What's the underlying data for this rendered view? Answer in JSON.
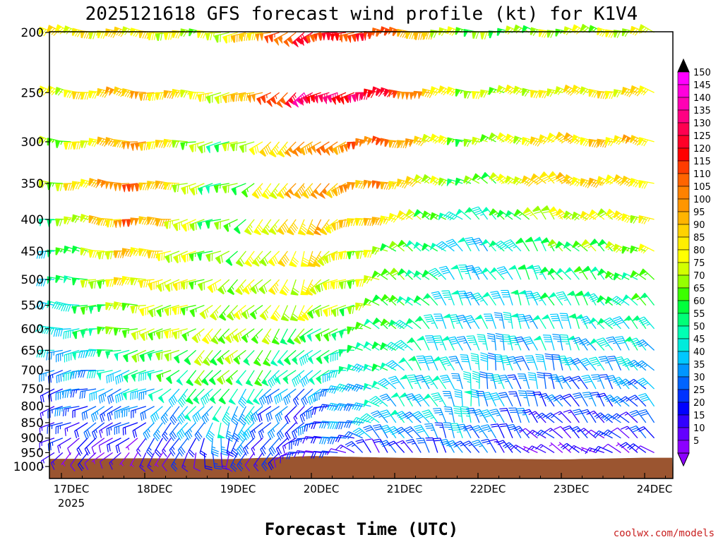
{
  "chart_data": {
    "type": "wind-barb-time-height",
    "title": "2025121618 GFS forecast wind profile (kt) for K1V4",
    "xlabel": "Forecast Time (UTC)",
    "ylabel": "Pressure (hPa)",
    "credit": "coolwx.com/models",
    "x_ticks": [
      "17DEC",
      "18DEC",
      "19DEC",
      "20DEC",
      "21DEC",
      "22DEC",
      "23DEC",
      "24DEC"
    ],
    "x_tick_sub": "2025",
    "y_ticks": [
      "200",
      "250",
      "300",
      "350",
      "400",
      "450",
      "500",
      "550",
      "600",
      "650",
      "700",
      "750",
      "800",
      "850",
      "900",
      "950",
      "1000"
    ],
    "levels_hpa": [
      200,
      250,
      300,
      350,
      400,
      450,
      500,
      550,
      600,
      650,
      700,
      750,
      800,
      850,
      900,
      950,
      1000
    ],
    "colorbar_labels": [
      "150",
      "145",
      "140",
      "135",
      "130",
      "125",
      "120",
      "115",
      "110",
      "105",
      "100",
      "95",
      "90",
      "85",
      "80",
      "75",
      "70",
      "65",
      "60",
      "55",
      "50",
      "45",
      "40",
      "35",
      "30",
      "25",
      "20",
      "15",
      "10",
      "5"
    ],
    "colorbar_colors": [
      "#ff00ff",
      "#ff00dc",
      "#ff00b4",
      "#ff0082",
      "#ff0050",
      "#ff0028",
      "#ff0000",
      "#ff3c00",
      "#ff6400",
      "#ff8200",
      "#ff9600",
      "#ffb400",
      "#ffd200",
      "#ffee00",
      "#ffff00",
      "#d2ff00",
      "#96ff00",
      "#3cff00",
      "#00ff3c",
      "#00ff78",
      "#00ffb4",
      "#00ebdc",
      "#00c8ff",
      "#0096ff",
      "#0064ff",
      "#0032ff",
      "#0000ff",
      "#3200ff",
      "#6400ff",
      "#8c00ff"
    ],
    "speed_profiles_kt": {
      "17DEC": [
        80,
        75,
        65,
        70,
        55,
        50,
        45,
        40,
        40,
        35,
        30,
        25,
        25,
        20,
        15,
        10,
        5
      ],
      "18DEC": [
        85,
        95,
        100,
        110,
        105,
        90,
        85,
        75,
        70,
        60,
        50,
        40,
        30,
        25,
        15,
        10,
        5
      ],
      "19DEC": [
        70,
        75,
        60,
        55,
        60,
        65,
        70,
        70,
        75,
        70,
        65,
        55,
        45,
        40,
        30,
        20,
        10
      ],
      "20DEC": [
        120,
        130,
        100,
        95,
        90,
        85,
        80,
        75,
        60,
        50,
        45,
        30,
        20,
        25,
        20,
        15,
        10
      ],
      "21DEC": [
        115,
        125,
        110,
        100,
        90,
        70,
        70,
        65,
        60,
        55,
        50,
        45,
        45,
        40,
        35,
        20,
        10
      ],
      "22DEC": [
        65,
        70,
        65,
        60,
        45,
        40,
        40,
        40,
        40,
        40,
        40,
        40,
        40,
        40,
        35,
        30,
        15
      ],
      "23DEC": [
        70,
        80,
        85,
        90,
        75,
        60,
        55,
        50,
        45,
        40,
        35,
        30,
        25,
        20,
        15,
        10,
        10
      ],
      "24DEC": [
        75,
        85,
        90,
        85,
        80,
        70,
        60,
        55,
        50,
        45,
        40,
        35,
        30,
        25,
        20,
        15,
        10
      ]
    },
    "direction_profiles_deg": {
      "17DEC": [
        290,
        285,
        280,
        280,
        280,
        280,
        275,
        275,
        270,
        265,
        260,
        255,
        250,
        245,
        240,
        230,
        220
      ],
      "18DEC": [
        280,
        280,
        275,
        275,
        275,
        275,
        270,
        270,
        265,
        260,
        255,
        250,
        245,
        240,
        230,
        220,
        210
      ],
      "19DEC": [
        270,
        265,
        260,
        255,
        250,
        245,
        240,
        235,
        230,
        225,
        220,
        215,
        210,
        200,
        190,
        180,
        170
      ],
      "20DEC": [
        240,
        230,
        220,
        210,
        200,
        200,
        205,
        210,
        215,
        220,
        225,
        230,
        235,
        240,
        250,
        260,
        270
      ],
      "21DEC": [
        280,
        280,
        285,
        285,
        290,
        295,
        300,
        300,
        305,
        305,
        305,
        310,
        310,
        310,
        320,
        330,
        340
      ],
      "22DEC": [
        280,
        285,
        290,
        300,
        310,
        320,
        330,
        335,
        340,
        345,
        350,
        350,
        350,
        345,
        340,
        330,
        320
      ],
      "23DEC": [
        290,
        290,
        300,
        310,
        320,
        325,
        330,
        335,
        340,
        340,
        340,
        340,
        330,
        320,
        310,
        300,
        290
      ],
      "24DEC": [
        290,
        285,
        285,
        290,
        295,
        300,
        305,
        310,
        315,
        320,
        320,
        320,
        320,
        315,
        310,
        300,
        290
      ]
    },
    "terrain_hpa_by_date": {
      "17DEC": 972,
      "18DEC": 970,
      "19DEC": 973,
      "20DEC": 962,
      "21DEC": 968,
      "22DEC": 971,
      "23DEC": 974,
      "24DEC": 968
    },
    "terrain_color": "#9b5530",
    "barb_columns_per_day": 10
  }
}
